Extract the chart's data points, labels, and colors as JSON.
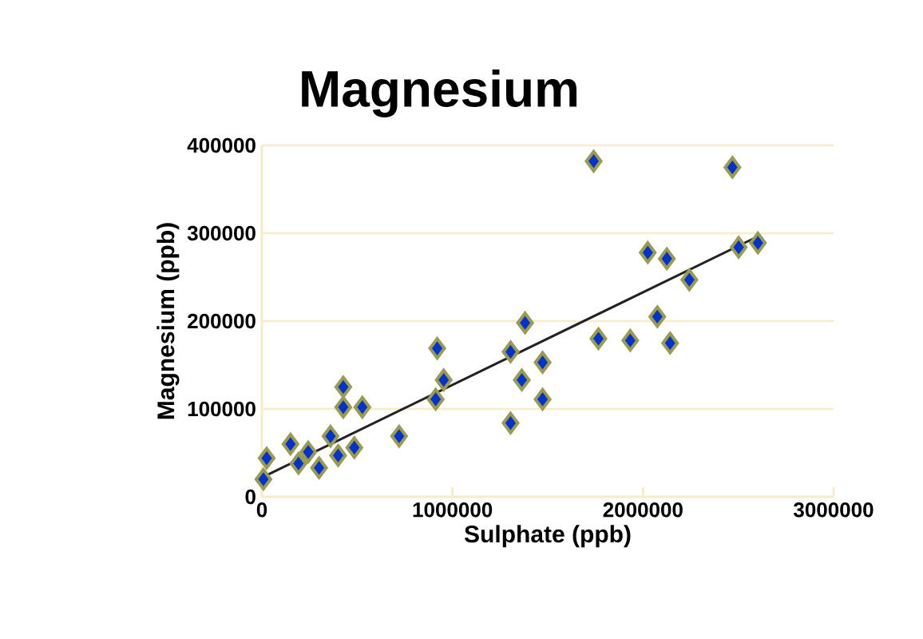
{
  "chart_data": {
    "type": "scatter",
    "title": "Magnesium",
    "xlabel": "Sulphate (ppb)",
    "ylabel": "Magnesium (ppb)",
    "xlim": [
      0,
      3000000
    ],
    "ylim": [
      0,
      400000
    ],
    "xticks": [
      0,
      1000000,
      2000000,
      3000000
    ],
    "yticks": [
      0,
      100000,
      200000,
      300000,
      400000
    ],
    "grid": "y",
    "series": [
      {
        "marker": "diamond",
        "color": "#0033cc",
        "x": [
          8000,
          25000,
          150000,
          243000,
          300000,
          360000,
          427000,
          427000,
          527000,
          400000,
          485000,
          192000,
          720000,
          920000,
          954000,
          912000,
          1305000,
          1381000,
          1305000,
          1473000,
          1364000,
          1473000,
          1741000,
          2469000,
          2025000,
          2125000,
          2243000,
          2075000,
          2142000,
          1766000,
          1933000,
          2502000,
          2603000
        ],
        "values": [
          20000,
          44000,
          60000,
          51000,
          33000,
          69000,
          125000,
          102000,
          102000,
          47000,
          56000,
          38000,
          69000,
          169000,
          133000,
          111000,
          84000,
          198000,
          165000,
          153000,
          133000,
          111000,
          382000,
          375000,
          278000,
          271000,
          247000,
          205000,
          175000,
          180000,
          178000,
          284000,
          289000
        ]
      },
      {
        "type": "line",
        "color": "#222222",
        "x": [
          0,
          2590000
        ],
        "values": [
          22000,
          295000
        ]
      }
    ]
  }
}
